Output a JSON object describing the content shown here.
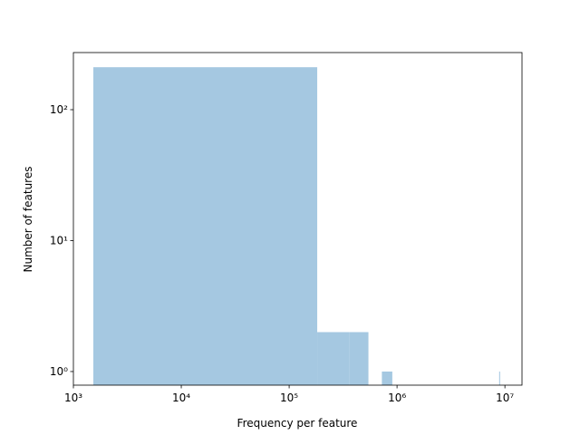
{
  "chart_data": {
    "type": "histogram",
    "xlabel": "Frequency per feature",
    "ylabel": "Number of features",
    "xscale": "log",
    "yscale": "log",
    "bins": [
      1530,
      182030,
      362530,
      543030,
      723530,
      904030,
      1084530,
      1265030,
      1445530,
      1626030,
      1806530,
      1987030,
      2167530,
      2348030,
      2528530,
      2709030,
      2889530,
      3070030,
      3250530,
      3431030,
      3611530,
      3792030,
      3972530,
      4153030,
      4333530,
      4514030,
      4694530,
      4875030,
      5055530,
      5236030,
      5416530,
      5597030,
      5777530,
      5958030,
      6138530,
      6319030,
      6499530,
      6680030,
      6860530,
      7041030,
      7221530,
      7402030,
      7582530,
      7763030,
      7943530,
      8124030,
      8304530,
      8485030,
      8665530,
      8846030,
      9026530
    ],
    "values": [
      211,
      2,
      2,
      0,
      1,
      0,
      0,
      0,
      0,
      0,
      0,
      0,
      0,
      0,
      0,
      0,
      0,
      0,
      0,
      0,
      0,
      0,
      0,
      0,
      0,
      0,
      0,
      0,
      0,
      0,
      0,
      0,
      0,
      0,
      0,
      0,
      0,
      0,
      0,
      0,
      0,
      0,
      0,
      0,
      0,
      0,
      0,
      0,
      0,
      1
    ],
    "color": "#a5c8e1",
    "xlim": [
      1000,
      14400000
    ],
    "ylim": [
      0.787,
      273
    ],
    "xticks": [
      {
        "value": 1000,
        "label": "10³"
      },
      {
        "value": 10000,
        "label": "10⁴"
      },
      {
        "value": 100000,
        "label": "10⁵"
      },
      {
        "value": 1000000,
        "label": "10⁶"
      },
      {
        "value": 10000000,
        "label": "10⁷"
      }
    ],
    "yticks": [
      {
        "value": 1,
        "label": "10⁰"
      },
      {
        "value": 10,
        "label": "10¹"
      },
      {
        "value": 100,
        "label": "10²"
      }
    ]
  }
}
